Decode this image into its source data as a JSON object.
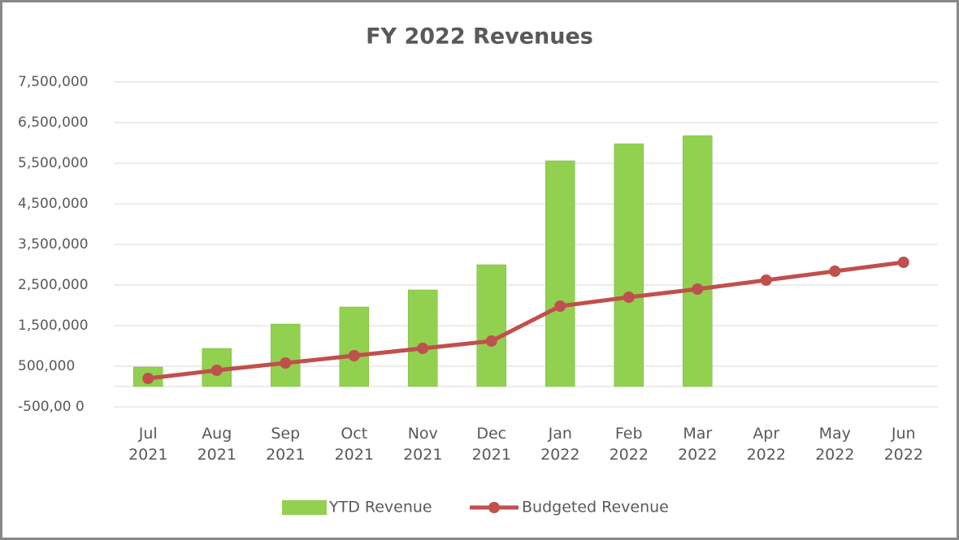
{
  "chart_data": {
    "type": "bar_line",
    "title": "FY 2022 Revenues",
    "categories": [
      "Jul 2021",
      "Aug 2021",
      "Sep 2021",
      "Oct 2021",
      "Nov 2021",
      "Dec 2021",
      "Jan 2022",
      "Feb 2022",
      "Mar 2022",
      "Apr 2022",
      "May 2022",
      "Jun 2022"
    ],
    "series": [
      {
        "name": "YTD Revenue",
        "type": "bar",
        "color": "#92d050",
        "values": [
          480000,
          940000,
          1540000,
          1960000,
          2380000,
          3000000,
          5560000,
          5980000,
          6180000,
          null,
          null,
          null
        ]
      },
      {
        "name": "Budgeted Revenue",
        "type": "line",
        "color": "#c0504d",
        "values": [
          200000,
          400000,
          580000,
          760000,
          940000,
          1120000,
          1980000,
          2200000,
          2400000,
          2620000,
          2840000,
          3060000
        ]
      }
    ],
    "ylim": [
      -500000,
      7500000
    ],
    "yticks": [
      {
        "value": -500000,
        "label": "-500,00 0"
      },
      {
        "value": 500000,
        "label": "500,000"
      },
      {
        "value": 1500000,
        "label": "1,500,000"
      },
      {
        "value": 2500000,
        "label": "2,500,000"
      },
      {
        "value": 3500000,
        "label": "3,500,000"
      },
      {
        "value": 4500000,
        "label": "4,500,000"
      },
      {
        "value": 5500000,
        "label": "5,500,000"
      },
      {
        "value": 6500000,
        "label": "6,500,000"
      },
      {
        "value": 7500000,
        "label": "7,500,000"
      }
    ],
    "grid": true,
    "legend": "bottom"
  }
}
